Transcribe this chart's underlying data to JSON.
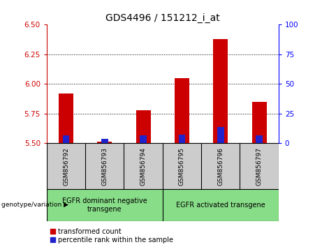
{
  "title": "GDS4496 / 151212_i_at",
  "samples": [
    "GSM856792",
    "GSM856793",
    "GSM856794",
    "GSM856795",
    "GSM856796",
    "GSM856797"
  ],
  "transformed_count": [
    5.92,
    5.515,
    5.78,
    6.05,
    6.38,
    5.85
  ],
  "percentile_rank_val": [
    5.565,
    5.535,
    5.565,
    5.575,
    5.635,
    5.565
  ],
  "ylim_left": [
    5.5,
    6.5
  ],
  "ylim_right": [
    0,
    100
  ],
  "yticks_left": [
    5.5,
    5.75,
    6.0,
    6.25,
    6.5
  ],
  "yticks_right": [
    0,
    25,
    50,
    75,
    100
  ],
  "red_color": "#cc0000",
  "blue_color": "#2222cc",
  "green_color": "#88dd88",
  "gray_color": "#cccccc",
  "group1_label": "EGFR dominant negative\ntransgene",
  "group2_label": "EGFR activated transgene",
  "legend_red": "transformed count",
  "legend_blue": "percentile rank within the sample",
  "xlabel_group": "genotype/variation",
  "title_fontsize": 10
}
